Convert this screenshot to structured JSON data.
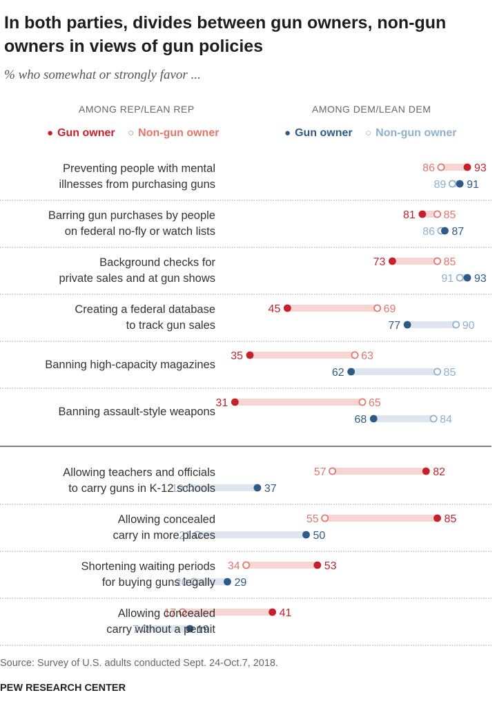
{
  "title": "In both parties, divides between gun owners, non-gun owners in views of gun policies",
  "subtitle": "% who somewhat or strongly favor ...",
  "headers": {
    "rep": "AMONG REP/LEAN REP",
    "dem": "AMONG DEM/LEAN DEM"
  },
  "legend": {
    "rep_gun_owner": "Gun owner",
    "rep_non_gun_owner": "Non-gun owner",
    "dem_gun_owner": "Gun owner",
    "dem_non_gun_owner": "Non-gun owner"
  },
  "source": "Source: Survey of U.S. adults conducted Sept. 24-Oct.7, 2018.",
  "brand": "PEW RESEARCH CENTER",
  "colors": {
    "rep_dark": "#c8202a",
    "rep_light": "#e8746a",
    "rep_band": "#f8d4d2",
    "dem_dark": "#2d5a86",
    "dem_light": "#8fb0cf",
    "dem_band": "#dde6ef"
  },
  "chart_data": {
    "type": "dot",
    "series": [
      {
        "name": "Gun owner",
        "party": "Rep/Lean Rep"
      },
      {
        "name": "Non-gun owner",
        "party": "Rep/Lean Rep"
      },
      {
        "name": "Gun owner",
        "party": "Dem/Lean Dem"
      },
      {
        "name": "Non-gun owner",
        "party": "Dem/Lean Dem"
      }
    ],
    "xlim": [
      0,
      100
    ],
    "rows": [
      {
        "label": [
          "Preventing people with mental",
          "illnesses from purchasing guns"
        ],
        "rep_gun": 93,
        "rep_non": 86,
        "dem_gun": 91,
        "dem_non": 89
      },
      {
        "label": [
          "Barring gun purchases by people",
          "on federal no-fly or watch lists"
        ],
        "rep_gun": 81,
        "rep_non": 85,
        "dem_gun": 87,
        "dem_non": 86
      },
      {
        "label": [
          "Background checks for",
          "private sales and at gun shows"
        ],
        "rep_gun": 73,
        "rep_non": 85,
        "dem_gun": 93,
        "dem_non": 91
      },
      {
        "label": [
          "Creating a federal database",
          "to track gun sales"
        ],
        "rep_gun": 45,
        "rep_non": 69,
        "dem_gun": 77,
        "dem_non": 90
      },
      {
        "label": [
          "Banning high-capacity magazines"
        ],
        "rep_gun": 35,
        "rep_non": 63,
        "dem_gun": 62,
        "dem_non": 85
      },
      {
        "label": [
          "Banning assault-style weapons"
        ],
        "rep_gun": 31,
        "rep_non": 65,
        "dem_gun": 68,
        "dem_non": 84
      },
      {
        "label": [
          "Allowing teachers and officials",
          "to carry guns in K-12 schools"
        ],
        "rep_gun": 82,
        "rep_non": 57,
        "dem_gun": 37,
        "dem_non": 19
      },
      {
        "label": [
          "Allowing concealed",
          "carry in more places"
        ],
        "rep_gun": 85,
        "rep_non": 55,
        "dem_gun": 50,
        "dem_non": 21
      },
      {
        "label": [
          "Shortening waiting periods",
          "for buying guns legally"
        ],
        "rep_gun": 53,
        "rep_non": 34,
        "dem_gun": 29,
        "dem_non": 20
      },
      {
        "label": [
          "Allowing concealed",
          "carry without a permit"
        ],
        "rep_gun": 41,
        "rep_non": 17,
        "dem_gun": 19,
        "dem_non": 7
      }
    ]
  }
}
